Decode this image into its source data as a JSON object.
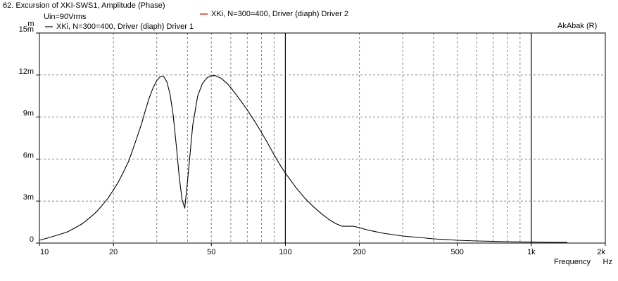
{
  "window": {
    "title": "62. Excursion of XKI-SWS1, Amplitude (Phase)",
    "condition": "Uin=90Vrms",
    "brand": "AkAbak (R)"
  },
  "chart_data": {
    "type": "line",
    "title": "62. Excursion of XKI-SWS1, Amplitude (Phase)",
    "xlabel": "Frequency",
    "xunit": "Hz",
    "ylabel": "",
    "yunit": "m",
    "xscale": "log",
    "xlim": [
      10,
      2000
    ],
    "ylim": [
      0,
      15
    ],
    "grid": true,
    "legend_position": "top",
    "x_ticks": [
      {
        "value": 10,
        "label": "10"
      },
      {
        "value": 20,
        "label": "20"
      },
      {
        "value": 50,
        "label": "50"
      },
      {
        "value": 100,
        "label": "100"
      },
      {
        "value": 200,
        "label": "200"
      },
      {
        "value": 500,
        "label": "500"
      },
      {
        "value": 1000,
        "label": "1k"
      },
      {
        "value": 2000,
        "label": "2k"
      }
    ],
    "y_ticks": [
      {
        "value": 0,
        "label": "0"
      },
      {
        "value": 3,
        "label": "3m"
      },
      {
        "value": 6,
        "label": "6m"
      },
      {
        "value": 9,
        "label": "9m"
      },
      {
        "value": 12,
        "label": "12m"
      },
      {
        "value": 15,
        "label": "15m"
      }
    ],
    "series": [
      {
        "name": "XKi, N=300=400, Driver (diaph) Driver 1",
        "color": "#000000",
        "x": [
          10,
          11,
          12,
          13,
          14,
          15,
          16,
          17,
          18,
          19,
          20,
          21,
          22,
          23,
          24,
          25,
          26,
          27,
          28,
          29,
          30,
          31,
          32,
          33,
          34,
          35,
          36,
          37,
          38,
          39,
          40,
          42,
          44,
          46,
          48,
          50,
          52,
          55,
          58,
          60,
          65,
          70,
          75,
          80,
          85,
          90,
          95,
          100,
          110,
          120,
          130,
          140,
          150,
          160,
          170,
          180,
          190,
          200,
          220,
          250,
          300,
          350,
          400,
          500,
          600,
          700,
          800,
          900,
          1000,
          1200,
          1400
        ],
        "y": [
          0.2,
          0.4,
          0.6,
          0.8,
          1.1,
          1.4,
          1.8,
          2.2,
          2.7,
          3.2,
          3.8,
          4.4,
          5.1,
          5.8,
          6.7,
          7.6,
          8.5,
          9.5,
          10.4,
          11.1,
          11.6,
          11.9,
          11.9,
          11.5,
          10.6,
          9.1,
          7.0,
          4.8,
          3.1,
          2.5,
          4.4,
          8.4,
          10.5,
          11.4,
          11.8,
          11.95,
          11.95,
          11.75,
          11.4,
          11.1,
          10.3,
          9.5,
          8.7,
          7.9,
          7.1,
          6.3,
          5.6,
          5.0,
          4.0,
          3.2,
          2.6,
          2.1,
          1.7,
          1.4,
          1.2,
          1.2,
          1.2,
          1.1,
          0.9,
          0.7,
          0.5,
          0.4,
          0.3,
          0.2,
          0.15,
          0.12,
          0.1,
          0.08,
          0.07,
          0.05,
          0.05
        ]
      },
      {
        "name": "XKi, N=300=400, Driver (diaph) Driver 2",
        "color": "#d00000",
        "x": [],
        "y": []
      }
    ]
  }
}
